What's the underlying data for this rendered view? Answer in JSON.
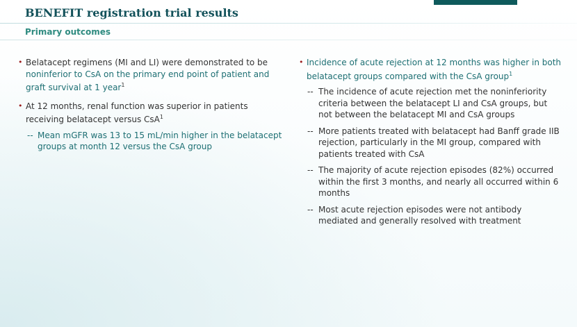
{
  "header": {
    "title": "BENEFIT registration trial results",
    "subtitle": "Primary outcomes"
  },
  "left": {
    "b1_pre": "Belatacept regimens (MI and LI) were demonstrated to be ",
    "b1_teal": "noninferior to CsA on the primary end point of patient and graft survival at 1 year",
    "b1_sup": "1",
    "b2_text": "At 12 months, renal function was superior in patients receiving belatacept versus CsA",
    "b2_sup": "1",
    "b2_sub1": "Mean mGFR was 13 to 15 mL/min higher in the belatacept groups at month 12 versus the CsA group"
  },
  "right": {
    "b1_text": "Incidence of acute rejection at 12 months was higher in both belatacept groups compared with the CsA group",
    "b1_sup": "1",
    "subs": [
      "The incidence of acute rejection met the noninferiority criteria between the belatacept LI and CsA groups, but not between the belatacept MI and CsA groups",
      "More patients treated with belatacept had Banff grade IIB rejection, particularly in the MI group, compared with patients treated with CsA",
      "The majority of acute rejection episodes (82%) occurred within the first 3 months, and nearly all occurred within 6 months",
      "Most acute rejection episodes were not antibody mediated and generally resolved with treatment"
    ]
  },
  "glyphs": {
    "dot": "•",
    "dash": "--"
  },
  "colors": {
    "title": "#12515a",
    "subtitle": "#2f8b80",
    "bullet": "#9b1c1c",
    "teal_text": "#1d6f73",
    "accent_bar": "#0e5a5c"
  }
}
